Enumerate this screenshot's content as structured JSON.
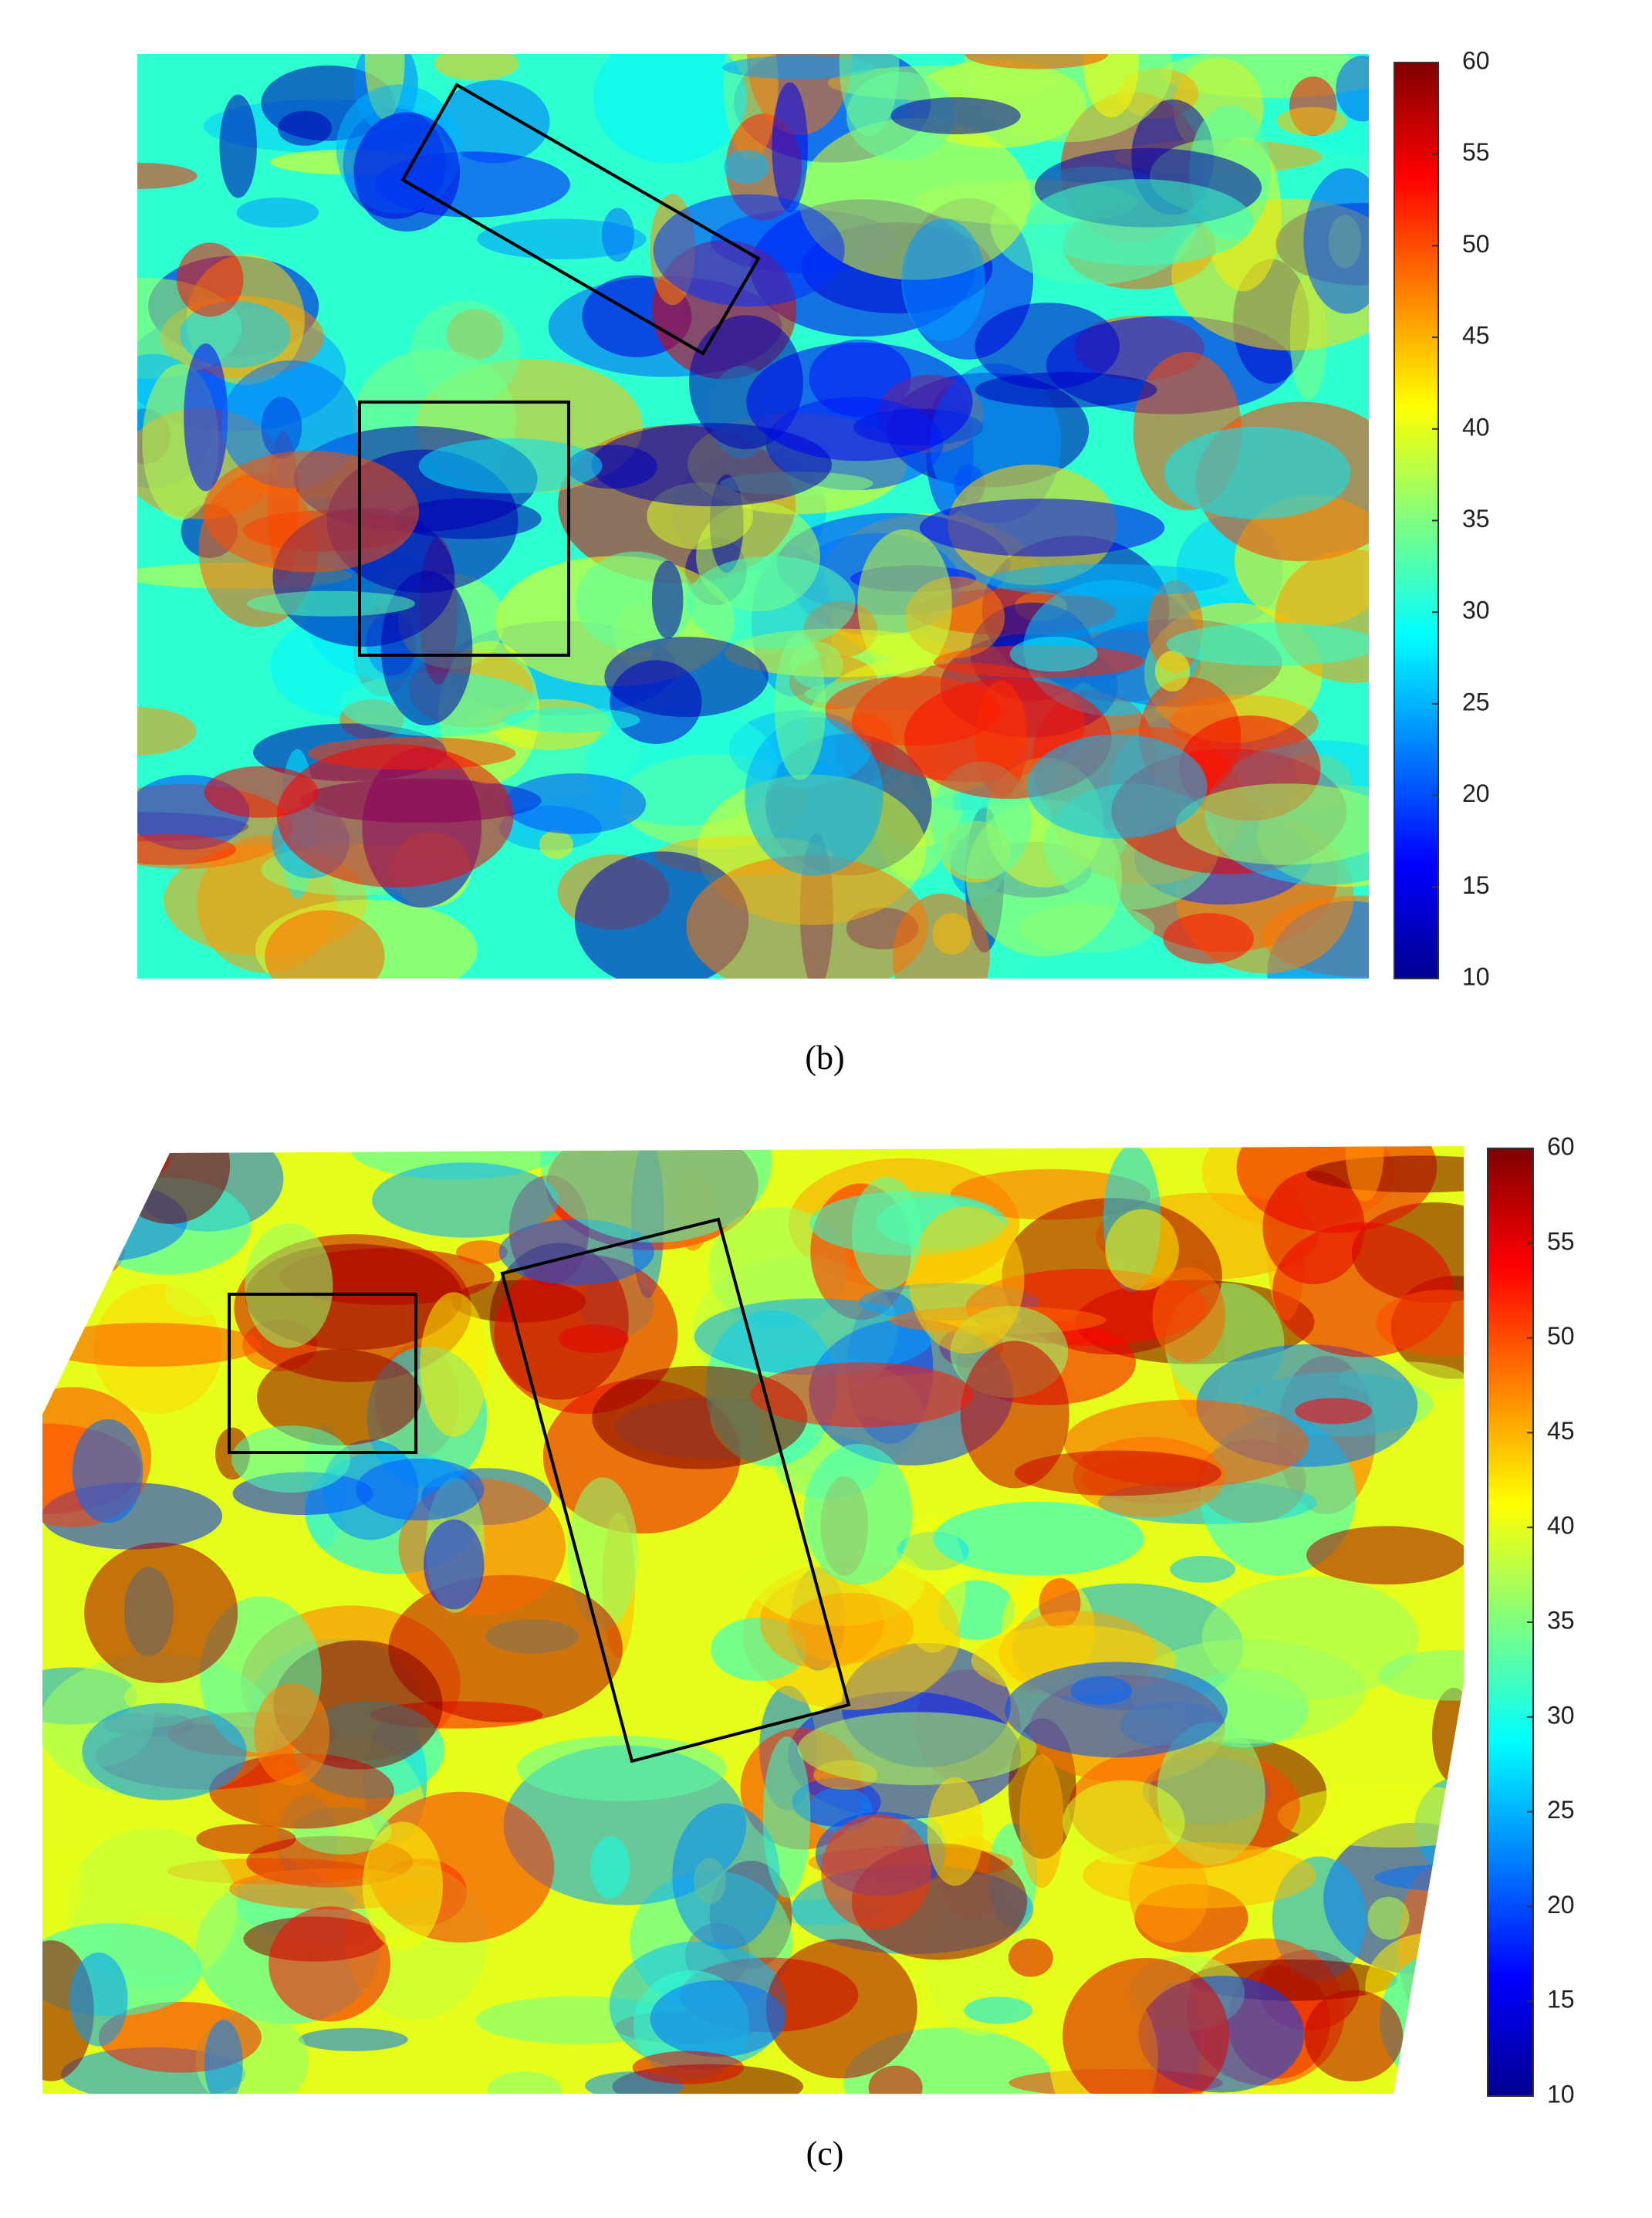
{
  "chart_data": [
    {
      "type": "colormap-image",
      "caption": "(b)",
      "colormap": "jet",
      "colorbar": {
        "lim": [
          10,
          60
        ],
        "ticks": [
          10,
          15,
          20,
          25,
          30,
          35,
          40,
          45,
          50,
          55,
          60
        ]
      }
    },
    {
      "type": "colormap-image",
      "caption": "(c)",
      "colormap": "jet",
      "colorbar": {
        "lim": [
          10,
          60
        ],
        "ticks": [
          10,
          15,
          20,
          25,
          30,
          35,
          40,
          45,
          50,
          55,
          60
        ]
      }
    }
  ]
}
